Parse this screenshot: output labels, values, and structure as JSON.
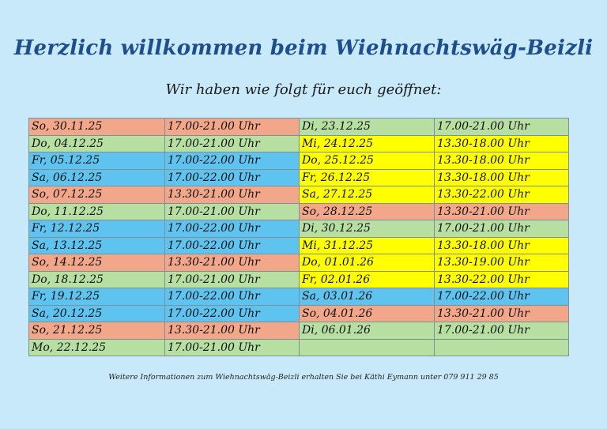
{
  "title": "Herzlich willkommen beim Wiehnachtswäg-Beizli",
  "subtitle": "Wir haben wie folgt für euch geöffnet:",
  "colors": {
    "background": "#c7e9f9",
    "title": "#1f4e8c",
    "salmon": "#f2a68a",
    "green": "#b7dfa2",
    "blue": "#5ec3ef",
    "yellow": "#ffff00",
    "empty": "#b7dfa2"
  },
  "schedule": [
    {
      "left": {
        "day": "So, 30.11.25",
        "hours": "17.00-21.00 Uhr",
        "color": "salmon"
      },
      "right": {
        "day": "Di, 23.12.25",
        "hours": "17.00-21.00 Uhr",
        "color": "green"
      }
    },
    {
      "left": {
        "day": "Do, 04.12.25",
        "hours": "17.00-21.00 Uhr",
        "color": "green"
      },
      "right": {
        "day": "Mi, 24.12.25",
        "hours": "13.30-18.00 Uhr",
        "color": "yellow"
      }
    },
    {
      "left": {
        "day": "Fr, 05.12.25",
        "hours": "17.00-22.00 Uhr",
        "color": "blue"
      },
      "right": {
        "day": "Do, 25.12.25",
        "hours": "13.30-18.00 Uhr",
        "color": "yellow"
      }
    },
    {
      "left": {
        "day": "Sa, 06.12.25",
        "hours": "17.00-22.00 Uhr",
        "color": "blue"
      },
      "right": {
        "day": "Fr, 26.12.25",
        "hours": "13.30-18.00 Uhr",
        "color": "yellow"
      }
    },
    {
      "left": {
        "day": "So, 07.12.25",
        "hours": "13.30-21.00 Uhr",
        "color": "salmon"
      },
      "right": {
        "day": "Sa, 27.12.25",
        "hours": "13.30-22.00 Uhr",
        "color": "yellow"
      }
    },
    {
      "left": {
        "day": "Do, 11.12.25",
        "hours": "17.00-21.00 Uhr",
        "color": "green"
      },
      "right": {
        "day": "So, 28.12.25",
        "hours": "13.30-21.00 Uhr",
        "color": "salmon"
      }
    },
    {
      "left": {
        "day": "Fr, 12.12.25",
        "hours": "17.00-22.00 Uhr",
        "color": "blue"
      },
      "right": {
        "day": "Di, 30.12.25",
        "hours": "17.00-21.00 Uhr",
        "color": "green"
      }
    },
    {
      "left": {
        "day": "Sa, 13.12.25",
        "hours": "17.00-22.00 Uhr",
        "color": "blue"
      },
      "right": {
        "day": "Mi, 31.12.25",
        "hours": "13.30-18.00 Uhr",
        "color": "yellow"
      }
    },
    {
      "left": {
        "day": "So, 14.12.25",
        "hours": "13.30-21.00 Uhr",
        "color": "salmon"
      },
      "right": {
        "day": "Do, 01.01.26",
        "hours": "13.30-19.00 Uhr",
        "color": "yellow"
      }
    },
    {
      "left": {
        "day": "Do, 18.12.25",
        "hours": "17.00-21.00 Uhr",
        "color": "green"
      },
      "right": {
        "day": "Fr, 02.01.26",
        "hours": "13.30-22.00 Uhr",
        "color": "yellow"
      }
    },
    {
      "left": {
        "day": "Fr, 19.12.25",
        "hours": "17.00-22.00 Uhr",
        "color": "blue"
      },
      "right": {
        "day": "Sa, 03.01.26",
        "hours": "17.00-22.00 Uhr",
        "color": "blue"
      }
    },
    {
      "left": {
        "day": "Sa, 20.12.25",
        "hours": "17.00-22.00 Uhr",
        "color": "blue"
      },
      "right": {
        "day": "So, 04.01.26",
        "hours": "13.30-21.00 Uhr",
        "color": "salmon"
      }
    },
    {
      "left": {
        "day": "So, 21.12.25",
        "hours": "13.30-21.00 Uhr",
        "color": "salmon"
      },
      "right": {
        "day": "Di, 06.01.26",
        "hours": "17.00-21.00 Uhr",
        "color": "green"
      }
    },
    {
      "left": {
        "day": "Mo, 22.12.25",
        "hours": "17.00-21.00 Uhr",
        "color": "green"
      },
      "right": {
        "day": "",
        "hours": "",
        "color": "empty"
      }
    }
  ],
  "footer": "Weitere Informationen zum Wiehnachtswäg-Beizli erhalten Sie bei Käthi Eymann unter 079 911 29 85"
}
